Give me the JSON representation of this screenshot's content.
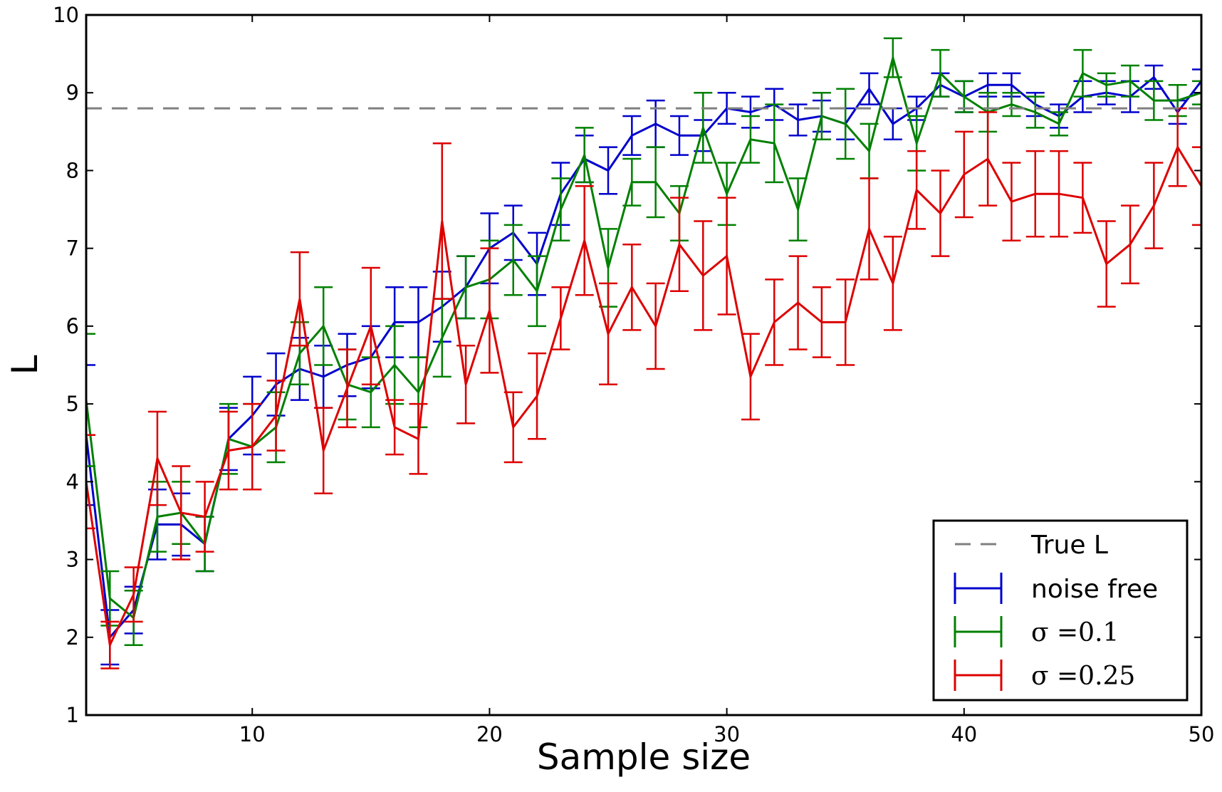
{
  "chart_data": {
    "type": "line",
    "title": "",
    "xlabel": "Sample size",
    "ylabel": "L",
    "xlim": [
      3,
      50
    ],
    "ylim": [
      1,
      10
    ],
    "xticks": [
      10,
      20,
      30,
      40,
      50
    ],
    "yticks": [
      1,
      2,
      3,
      4,
      5,
      6,
      7,
      8,
      9,
      10
    ],
    "xtick_labels": [
      "10",
      "20",
      "30",
      "40",
      "50"
    ],
    "ytick_labels": [
      "1",
      "2",
      "3",
      "4",
      "5",
      "6",
      "7",
      "8",
      "9",
      "10"
    ],
    "grid": false,
    "legend_position": "lower-right",
    "reference_line": {
      "name": "True L",
      "value": 8.8,
      "color": "#808080",
      "style": "dashed"
    },
    "x": [
      3,
      4,
      5,
      6,
      7,
      8,
      9,
      10,
      11,
      12,
      13,
      14,
      15,
      16,
      17,
      18,
      19,
      20,
      21,
      22,
      23,
      24,
      25,
      26,
      27,
      28,
      29,
      30,
      31,
      32,
      33,
      34,
      35,
      36,
      37,
      38,
      39,
      40,
      41,
      42,
      43,
      44,
      45,
      46,
      47,
      48,
      49,
      50
    ],
    "series": [
      {
        "name": "noise free",
        "color": "#0000cc",
        "values": [
          4.6,
          2.0,
          2.35,
          3.45,
          3.45,
          3.2,
          4.55,
          4.85,
          5.25,
          5.45,
          5.35,
          5.5,
          5.6,
          6.05,
          6.05,
          6.25,
          6.5,
          7.0,
          7.2,
          6.8,
          7.7,
          8.15,
          8.0,
          8.45,
          8.6,
          8.45,
          8.45,
          8.8,
          8.75,
          8.85,
          8.65,
          8.7,
          8.6,
          9.05,
          8.6,
          8.8,
          9.1,
          8.95,
          9.1,
          9.1,
          8.85,
          8.7,
          8.95,
          9.0,
          8.95,
          9.2,
          8.75,
          9.15
        ],
        "errors": [
          0.9,
          0.35,
          0.3,
          0.45,
          0.4,
          0.35,
          0.4,
          0.5,
          0.4,
          0.4,
          0.4,
          0.4,
          0.4,
          0.45,
          0.45,
          0.45,
          0.4,
          0.45,
          0.35,
          0.4,
          0.4,
          0.3,
          0.3,
          0.25,
          0.3,
          0.25,
          0.2,
          0.2,
          0.2,
          0.2,
          0.2,
          0.2,
          0.2,
          0.2,
          0.2,
          0.15,
          0.15,
          0.2,
          0.15,
          0.15,
          0.15,
          0.15,
          0.2,
          0.15,
          0.2,
          0.15,
          0.15,
          0.15
        ]
      },
      {
        "name": "σ =0.1",
        "color": "#008000",
        "values": [
          5.05,
          2.5,
          2.25,
          3.55,
          3.6,
          3.2,
          4.55,
          4.45,
          4.7,
          5.65,
          6.0,
          5.25,
          5.15,
          5.5,
          5.15,
          5.85,
          6.5,
          6.6,
          6.85,
          6.45,
          7.5,
          8.2,
          6.75,
          7.85,
          7.85,
          7.45,
          8.55,
          7.7,
          8.4,
          8.35,
          7.5,
          8.7,
          8.6,
          8.25,
          9.45,
          8.35,
          9.25,
          8.95,
          8.75,
          8.85,
          8.75,
          8.6,
          9.25,
          9.1,
          9.15,
          8.9,
          8.9,
          9.0
        ],
        "errors": [
          0.85,
          0.35,
          0.35,
          0.45,
          0.4,
          0.35,
          0.45,
          0.55,
          0.45,
          0.4,
          0.5,
          0.45,
          0.45,
          0.5,
          0.45,
          0.5,
          0.4,
          0.5,
          0.45,
          0.45,
          0.4,
          0.35,
          0.5,
          0.3,
          0.45,
          0.35,
          0.45,
          0.4,
          0.3,
          0.5,
          0.4,
          0.3,
          0.45,
          0.35,
          0.25,
          0.35,
          0.3,
          0.2,
          0.25,
          0.15,
          0.2,
          0.15,
          0.3,
          0.15,
          0.2,
          0.25,
          0.2,
          0.15
        ]
      },
      {
        "name": "σ =0.25",
        "color": "#dd0000",
        "values": [
          4.0,
          1.9,
          2.55,
          4.3,
          3.6,
          3.55,
          4.4,
          4.45,
          4.85,
          6.35,
          4.4,
          5.2,
          6.0,
          4.7,
          4.55,
          7.35,
          5.25,
          6.2,
          4.7,
          5.1,
          6.1,
          7.1,
          5.9,
          6.5,
          6.0,
          7.05,
          6.65,
          6.9,
          5.35,
          6.05,
          6.3,
          6.05,
          6.05,
          7.25,
          6.55,
          7.75,
          7.45,
          7.95,
          8.15,
          7.6,
          7.7,
          7.7,
          7.65,
          6.8,
          7.05,
          7.55,
          8.3,
          7.8
        ],
        "errors": [
          0.6,
          0.3,
          0.35,
          0.6,
          0.6,
          0.45,
          0.5,
          0.55,
          0.45,
          0.6,
          0.55,
          0.5,
          0.75,
          0.35,
          0.45,
          1.0,
          0.5,
          0.8,
          0.45,
          0.55,
          0.4,
          0.7,
          0.65,
          0.55,
          0.55,
          0.6,
          0.7,
          0.75,
          0.55,
          0.55,
          0.6,
          0.45,
          0.55,
          0.65,
          0.6,
          0.5,
          0.55,
          0.55,
          0.6,
          0.5,
          0.55,
          0.55,
          0.45,
          0.55,
          0.5,
          0.55,
          0.5,
          0.5
        ]
      }
    ]
  }
}
